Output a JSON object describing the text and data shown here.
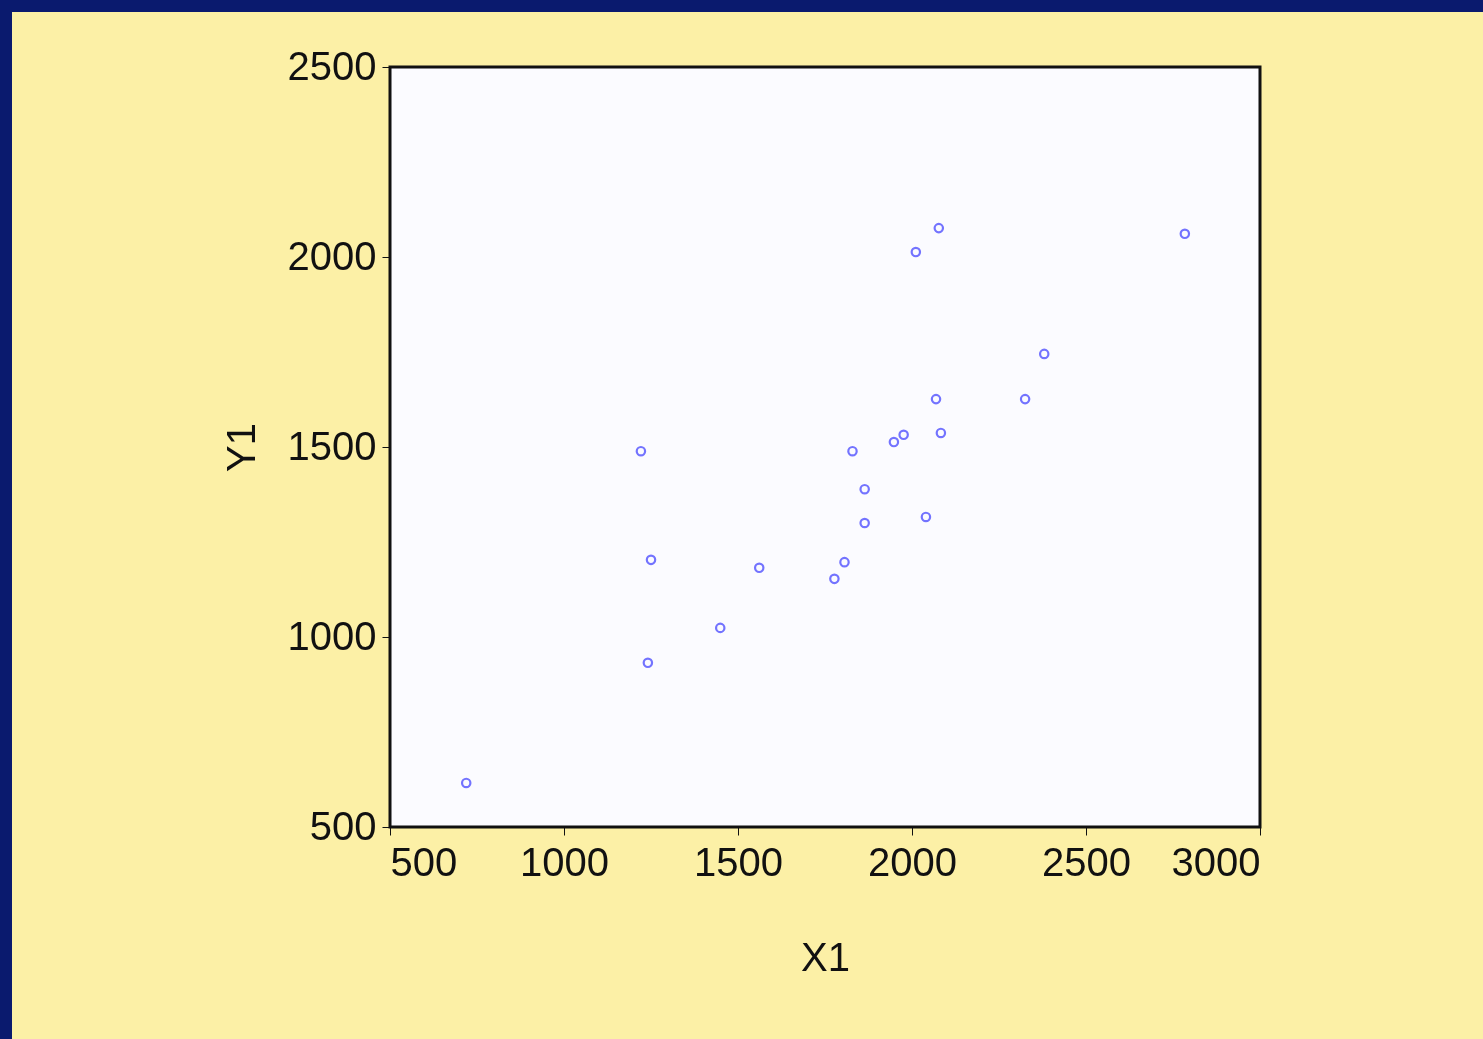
{
  "chart_data": {
    "type": "scatter",
    "xlabel": "X1",
    "ylabel": "Y1",
    "x": [
      719,
      1221,
      1250,
      1241,
      1449,
      1561,
      1777,
      1806,
      1829,
      1864,
      1864,
      1948,
      1976,
      2011,
      2077,
      2040,
      2069,
      2083,
      2325,
      2380,
      2784
    ],
    "series": [
      {
        "color": "#3a3aff",
        "values": [
          616,
          1489,
          1203,
          932,
          1024,
          1182,
          1153,
          1197,
          1489,
          1389,
          1300,
          1513,
          1532,
          2013,
          2076,
          1316,
          1626,
          1537,
          1626,
          1745,
          2061
        ]
      }
    ],
    "xlim": [
      500,
      3000
    ],
    "xticks": [
      500,
      1000,
      1500,
      2000,
      2500,
      3000
    ],
    "ylim": [
      500,
      2500
    ],
    "yticks": [
      500,
      1000,
      1500,
      2000,
      2500
    ],
    "grid": false,
    "marker": "circle"
  }
}
